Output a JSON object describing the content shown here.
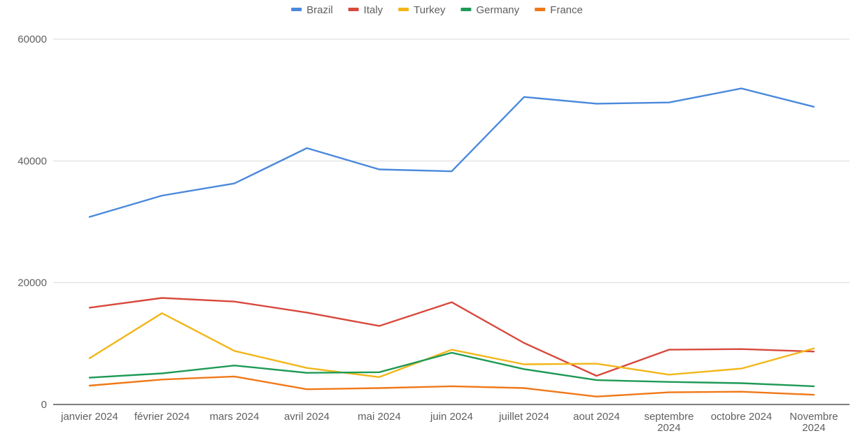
{
  "chart_data": {
    "type": "line",
    "title": "",
    "xlabel": "",
    "ylabel": "",
    "ylim": [
      0,
      60000
    ],
    "yticks": [
      0,
      20000,
      40000,
      60000
    ],
    "grid": true,
    "legend_position": "top",
    "categories": [
      "janvier 2024",
      "février 2024",
      "mars 2024",
      "avril 2024",
      "mai 2024",
      "juin 2024",
      "juillet 2024",
      "aout 2024",
      "septembre 2024",
      "octobre 2024",
      "Novembre 2024"
    ],
    "series": [
      {
        "name": "Brazil",
        "color": "#4a89dc",
        "values": [
          30800,
          34300,
          36300,
          42100,
          38600,
          38300,
          50500,
          49400,
          49600,
          51900,
          48900
        ]
      },
      {
        "name": "Italy",
        "color": "#d8493d",
        "values": [
          15900,
          17500,
          16900,
          15100,
          12900,
          16800,
          10100,
          4700,
          9000,
          9100,
          8700
        ]
      },
      {
        "name": "Turkey",
        "color": "#f2b619",
        "values": [
          7600,
          15000,
          8800,
          6000,
          4500,
          9000,
          6600,
          6700,
          4900,
          5900,
          9200
        ]
      },
      {
        "name": "Germany",
        "color": "#1e9a55",
        "values": [
          4400,
          5100,
          6400,
          5200,
          5300,
          8500,
          5800,
          4000,
          3700,
          3500,
          3000
        ]
      },
      {
        "name": "France",
        "color": "#f07818",
        "values": [
          3100,
          4100,
          4600,
          2500,
          2700,
          3000,
          2700,
          1300,
          2000,
          2100,
          1600
        ]
      }
    ]
  }
}
